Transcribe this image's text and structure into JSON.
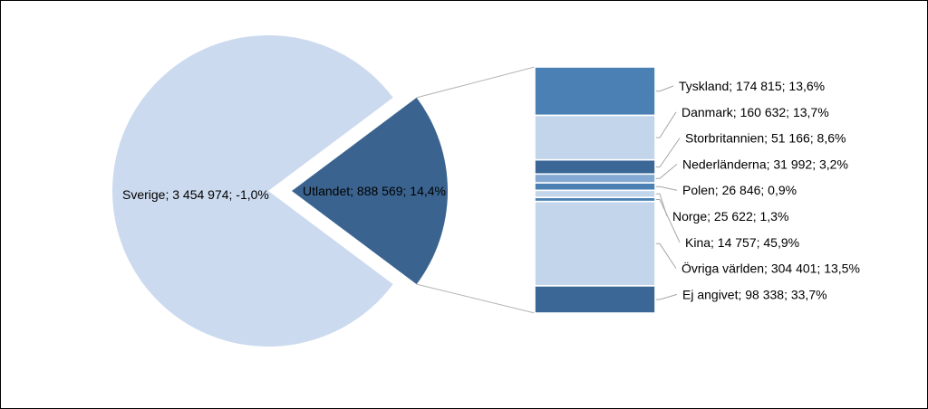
{
  "chart_data": {
    "type": "pie",
    "title": "",
    "pie": [
      {
        "name": "Sverige",
        "value": 3454974,
        "change": "-1,0%",
        "label": "Sverige; 3 454 974; -1,0%",
        "color": "#ccdaef"
      },
      {
        "name": "Utlandet",
        "value": 888569,
        "change": "14,4%",
        "label": "Utlandet; 888 569; 14,4%",
        "color": "#3a648f"
      }
    ],
    "breakdown_of": "Utlandet",
    "bar": [
      {
        "name": "Tyskland",
        "value": 174815,
        "change": "13,6%",
        "label": "Tyskland; 174 815; 13,6%",
        "color": "#4a80b4"
      },
      {
        "name": "Danmark",
        "value": 160632,
        "change": "13,7%",
        "label": "Danmark; 160 632; 13,7%",
        "color": "#c2d5ea"
      },
      {
        "name": "Storbritannien",
        "value": 51166,
        "change": "8,6%",
        "label": "Storbritannien; 51 166; 8,6%",
        "color": "#3a6796"
      },
      {
        "name": "Nederländerna",
        "value": 31992,
        "change": "3,2%",
        "label": "Nederländerna; 31 992; 3,2%",
        "color": "#84a9d2"
      },
      {
        "name": "Polen",
        "value": 26846,
        "change": "0,9%",
        "label": "Polen; 26 846; 0,9%",
        "color": "#4a80b4"
      },
      {
        "name": "Norge",
        "value": 25622,
        "change": "1,3%",
        "label": "Norge; 25 622; 1,3%",
        "color": "#c2d5ea"
      },
      {
        "name": "Kina",
        "value": 14757,
        "change": "45,9%",
        "label": "Kina; 14 757; 45,9%",
        "color": "#4a80b4"
      },
      {
        "name": "Övriga världen",
        "value": 304401,
        "change": "13,5%",
        "label": "Övriga världen; 304 401; 13,5%",
        "color": "#c2d5ea"
      },
      {
        "name": "Ej angivet",
        "value": 98338,
        "change": "33,7%",
        "label": "Ej angivet; 98 338; 33,7%",
        "color": "#3a6796"
      }
    ]
  }
}
